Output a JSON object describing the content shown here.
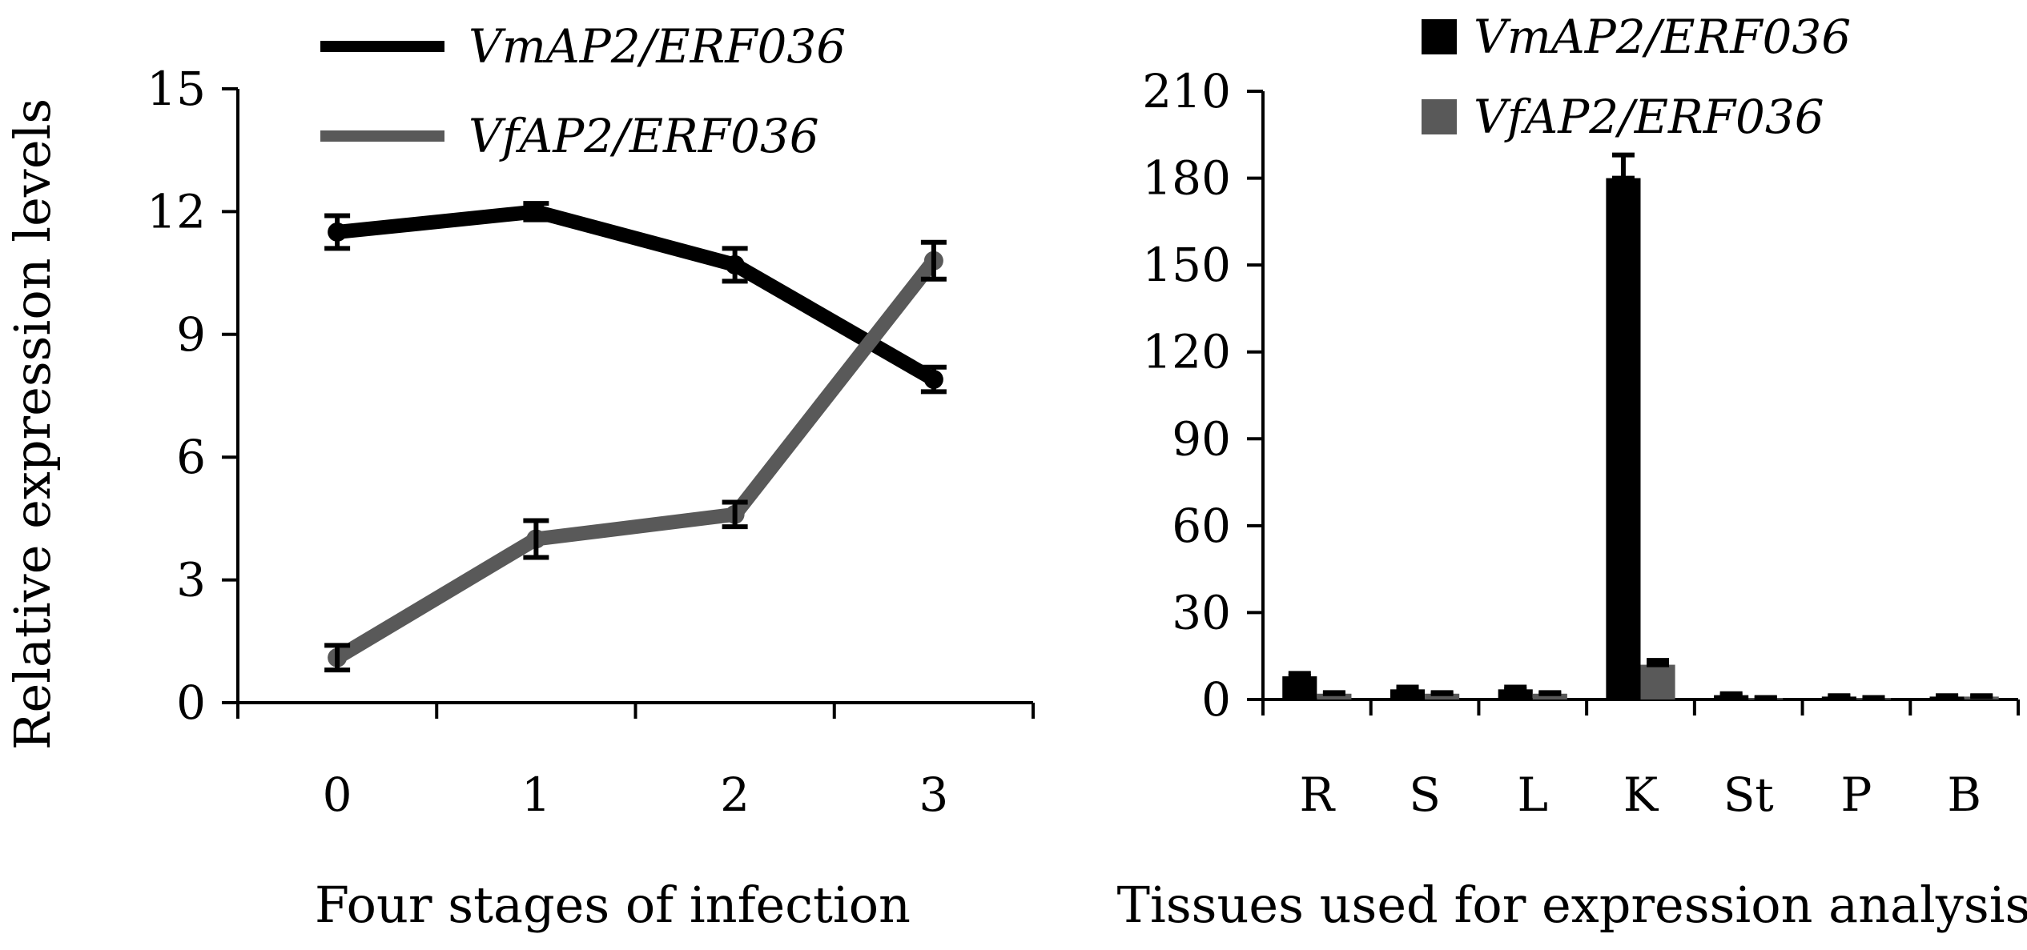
{
  "chart_data": [
    {
      "type": "line",
      "x": [
        0,
        1,
        2,
        3
      ],
      "xlabel": "Four stages of infection",
      "ylabel": "Relative expression levels",
      "ylim": [
        0,
        15
      ],
      "yticks": [
        0,
        3,
        6,
        9,
        12,
        15
      ],
      "legend_position": "top",
      "grid": false,
      "series": [
        {
          "name": "VmAP2/ERF036",
          "values": [
            11.5,
            12.0,
            10.7,
            7.9
          ],
          "errors": [
            0.4,
            0.2,
            0.4,
            0.3
          ],
          "color": "#000000"
        },
        {
          "name": "VfAP2/ERF036",
          "values": [
            1.1,
            4.0,
            4.6,
            10.8
          ],
          "errors": [
            0.3,
            0.45,
            0.3,
            0.45
          ],
          "color": "#595959"
        }
      ]
    },
    {
      "type": "bar",
      "categories": [
        "R",
        "S",
        "L",
        "K",
        "St",
        "P",
        "B"
      ],
      "xlabel": "Tissues used for expression analysis",
      "ylabel": "",
      "ylim": [
        0,
        210
      ],
      "yticks": [
        0,
        30,
        60,
        90,
        120,
        150,
        180,
        210
      ],
      "legend_position": "top",
      "grid": false,
      "series": [
        {
          "name": "VmAP2/ERF036",
          "values": [
            8,
            3.5,
            3.5,
            180,
            1.5,
            1,
            1
          ],
          "errors": [
            1,
            0.8,
            0.8,
            8,
            0.5,
            0.3,
            0.3
          ],
          "color": "#000000"
        },
        {
          "name": "VfAP2/ERF036",
          "values": [
            2,
            2,
            2,
            12,
            0.5,
            0.5,
            1
          ],
          "errors": [
            0.4,
            0.4,
            0.4,
            1.5,
            0.2,
            0.2,
            0.3
          ],
          "color": "#595959"
        }
      ]
    }
  ]
}
